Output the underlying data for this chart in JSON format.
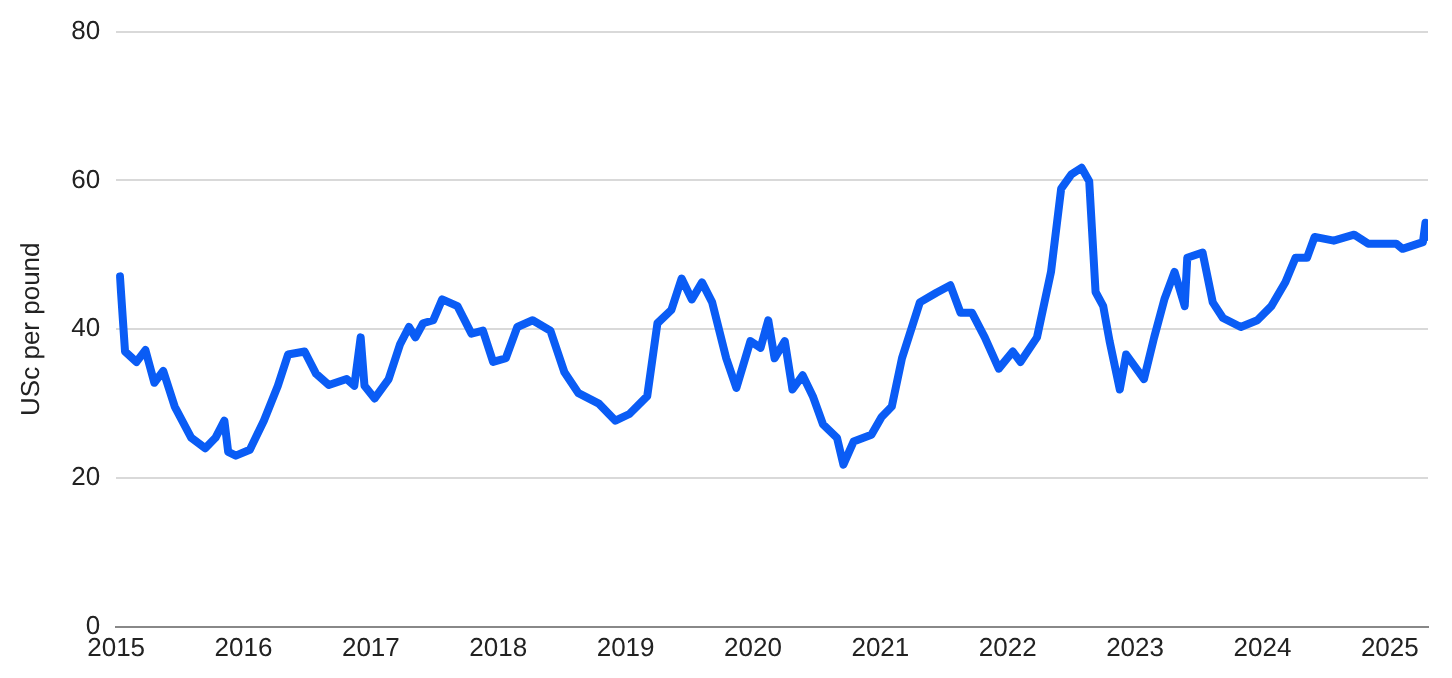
{
  "chart_data": {
    "type": "line",
    "ylabel": "USc per pound",
    "xlim": [
      2015,
      2025.3
    ],
    "xticks": [
      2015,
      2016,
      2017,
      2018,
      2019,
      2020,
      2021,
      2022,
      2023,
      2024,
      2025
    ],
    "ylim": [
      0,
      80
    ],
    "yticks": [
      0,
      20,
      40,
      60,
      80
    ],
    "grid": "y",
    "legend": false,
    "marker": "none",
    "line_style": "solid",
    "series": [
      {
        "color": "#0a5cf5",
        "x": [
          2015.03,
          2015.07,
          2015.16,
          2015.23,
          2015.3,
          2015.37,
          2015.46,
          2015.59,
          2015.7,
          2015.78,
          2015.85,
          2015.88,
          2015.94,
          2016.05,
          2016.16,
          2016.27,
          2016.35,
          2016.48,
          2016.57,
          2016.67,
          2016.81,
          2016.87,
          2016.92,
          2016.95,
          2017.03,
          2017.14,
          2017.23,
          2017.3,
          2017.35,
          2017.41,
          2017.49,
          2017.56,
          2017.68,
          2017.79,
          2017.88,
          2017.96,
          2018.06,
          2018.15,
          2018.27,
          2018.41,
          2018.52,
          2018.63,
          2018.79,
          2018.92,
          2019.03,
          2019.17,
          2019.25,
          2019.36,
          2019.44,
          2019.52,
          2019.6,
          2019.68,
          2019.79,
          2019.87,
          2019.98,
          2020.06,
          2020.12,
          2020.17,
          2020.25,
          2020.31,
          2020.39,
          2020.47,
          2020.55,
          2020.66,
          2020.71,
          2020.79,
          2020.93,
          2021.01,
          2021.09,
          2021.17,
          2021.31,
          2021.44,
          2021.55,
          2021.63,
          2021.72,
          2021.82,
          2021.93,
          2022.04,
          2022.1,
          2022.23,
          2022.34,
          2022.42,
          2022.5,
          2022.58,
          2022.64,
          2022.69,
          2022.75,
          2022.8,
          2022.88,
          2022.93,
          2023.07,
          2023.15,
          2023.23,
          2023.31,
          2023.39,
          2023.41,
          2023.53,
          2023.61,
          2023.69,
          2023.83,
          2023.96,
          2024.07,
          2024.18,
          2024.26,
          2024.35,
          2024.41,
          2024.56,
          2024.72,
          2024.83,
          2025.05,
          2025.1,
          2025.26,
          2025.28,
          2025.29
        ],
        "values": [
          47.1,
          37.0,
          35.6,
          37.2,
          32.8,
          34.4,
          29.6,
          25.4,
          24.0,
          25.4,
          27.7,
          23.5,
          23.0,
          23.8,
          27.7,
          32.4,
          36.6,
          37.0,
          34.0,
          32.5,
          33.3,
          32.4,
          38.9,
          32.4,
          30.7,
          33.3,
          38.0,
          40.3,
          38.9,
          40.8,
          41.2,
          44.0,
          43.1,
          39.4,
          39.8,
          35.6,
          36.1,
          40.3,
          41.2,
          39.8,
          34.2,
          31.4,
          30.0,
          27.7,
          28.6,
          31.0,
          40.8,
          42.6,
          46.8,
          44.0,
          46.3,
          43.6,
          36.1,
          32.1,
          38.4,
          37.5,
          41.2,
          36.1,
          38.4,
          31.9,
          33.8,
          31.0,
          27.2,
          25.4,
          21.8,
          24.9,
          25.8,
          28.2,
          29.6,
          36.1,
          43.6,
          44.9,
          45.9,
          42.2,
          42.2,
          38.9,
          34.7,
          37.0,
          35.6,
          38.9,
          47.7,
          58.9,
          60.8,
          61.7,
          59.9,
          45.0,
          43.1,
          38.4,
          31.9,
          36.6,
          33.3,
          38.9,
          44.0,
          47.7,
          43.1,
          49.6,
          50.3,
          43.6,
          41.5,
          40.3,
          41.2,
          43.1,
          46.3,
          49.6,
          49.6,
          52.4,
          51.9,
          52.7,
          51.5,
          51.5,
          50.8,
          51.7,
          54.3,
          52.4
        ]
      }
    ]
  }
}
